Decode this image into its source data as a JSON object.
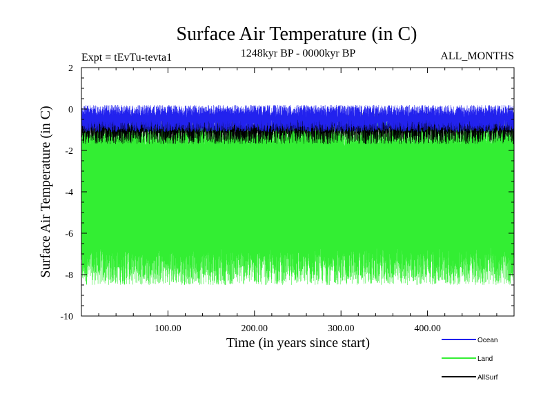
{
  "chart_data": {
    "type": "line",
    "title": "Surface Air Temperature (in C)",
    "subtitle_left": "Expt = tEvTu-tevta1",
    "subtitle_center": "1248kyr BP - 0000kyr BP",
    "subtitle_right": "ALL_MONTHS",
    "xlabel": "Time (in years since start)",
    "ylabel": "Surface Air Temperature (in C)",
    "xlim": [
      0,
      500
    ],
    "ylim": [
      -10,
      2
    ],
    "x_ticks": [
      100,
      200,
      300,
      400
    ],
    "x_tick_labels": [
      "100.00",
      "200.00",
      "300.00",
      "400.00"
    ],
    "y_ticks": [
      -10,
      -8,
      -6,
      -4,
      -2,
      0,
      2
    ],
    "y_tick_labels": [
      "-10",
      "-8",
      "-6",
      "-4",
      "-2",
      "0",
      "2"
    ],
    "series": [
      {
        "name": "Land",
        "color": "#33ee33",
        "band_top_mean": -1.2,
        "band_top_amp": 0.6,
        "band_bottom_mean": -7.6,
        "band_bottom_amp": 0.9,
        "start_x": 0,
        "end_x": 500
      },
      {
        "name": "AllSurf",
        "color": "#000000",
        "band_top_mean": -0.7,
        "band_top_amp": 0.5,
        "band_bottom_mean": -1.1,
        "band_bottom_amp": 0.6,
        "start_x": 0,
        "end_x": 500
      },
      {
        "name": "Ocean",
        "color": "#2222ee",
        "band_top_mean": -0.1,
        "band_top_amp": 0.3,
        "band_bottom_mean": -0.8,
        "band_bottom_amp": 0.3,
        "start_x": 0,
        "end_x": 500
      }
    ],
    "legend": [
      {
        "name": "Ocean",
        "color": "#2222ee"
      },
      {
        "name": "Land",
        "color": "#33ee33"
      },
      {
        "name": "AllSurf",
        "color": "#000000"
      }
    ],
    "legend_position": "bottom-right"
  }
}
